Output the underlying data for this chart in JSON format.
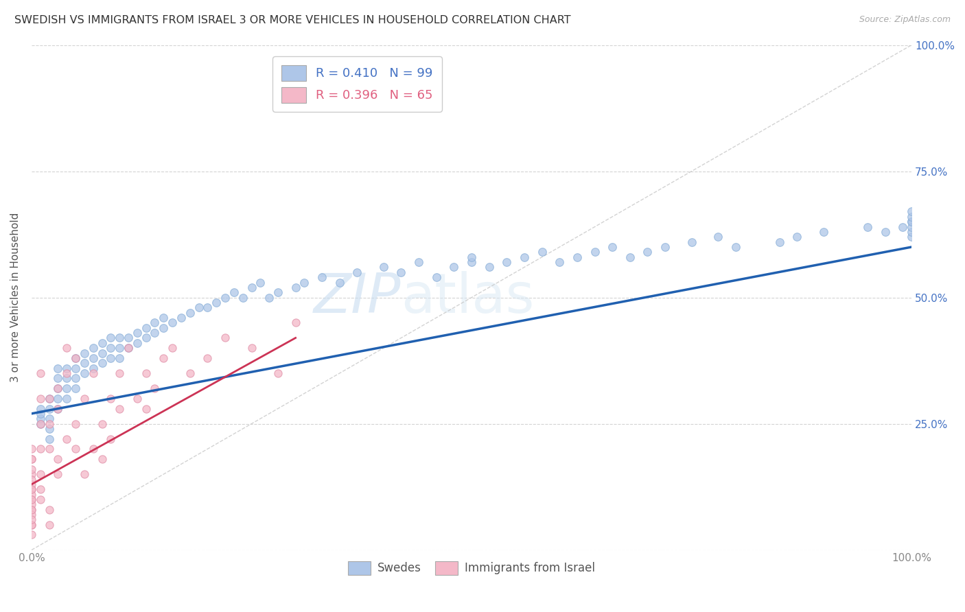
{
  "title": "SWEDISH VS IMMIGRANTS FROM ISRAEL 3 OR MORE VEHICLES IN HOUSEHOLD CORRELATION CHART",
  "source": "Source: ZipAtlas.com",
  "ylabel": "3 or more Vehicles in Household",
  "legend_entries": [
    {
      "label_r": "R = 0.410",
      "label_n": "N = 99",
      "color": "#aec6e8"
    },
    {
      "label_r": "R = 0.396",
      "label_n": "N = 65",
      "color": "#f4b8c8"
    }
  ],
  "legend_labels_bottom": [
    "Swedes",
    "Immigrants from Israel"
  ],
  "swedes_color": "#aec6e8",
  "israel_color": "#f4b8c8",
  "trend_swedes_color": "#2060b0",
  "trend_israel_color": "#cc3355",
  "diagonal_color": "#c8c8c8",
  "watermark_zip": "ZIP",
  "watermark_atlas": "atlas",
  "xlim": [
    0,
    100
  ],
  "ylim": [
    0,
    100
  ],
  "background_color": "#ffffff",
  "grid_color": "#c8c8c8",
  "swedes_x": [
    1,
    1,
    1,
    1,
    2,
    2,
    2,
    2,
    2,
    3,
    3,
    3,
    3,
    3,
    4,
    4,
    4,
    4,
    5,
    5,
    5,
    5,
    6,
    6,
    6,
    7,
    7,
    7,
    8,
    8,
    8,
    9,
    9,
    9,
    10,
    10,
    10,
    11,
    11,
    12,
    12,
    13,
    13,
    14,
    14,
    15,
    15,
    16,
    17,
    18,
    19,
    20,
    21,
    22,
    23,
    24,
    25,
    26,
    27,
    28,
    30,
    31,
    33,
    35,
    37,
    40,
    42,
    44,
    46,
    48,
    50,
    50,
    52,
    54,
    56,
    58,
    60,
    62,
    64,
    66,
    68,
    70,
    72,
    75,
    78,
    80,
    85,
    87,
    90,
    95,
    97,
    99,
    100,
    100,
    100,
    100,
    100,
    100,
    100
  ],
  "swedes_y": [
    25,
    26,
    27,
    28,
    22,
    24,
    26,
    28,
    30,
    28,
    30,
    32,
    34,
    36,
    30,
    32,
    34,
    36,
    32,
    34,
    36,
    38,
    35,
    37,
    39,
    36,
    38,
    40,
    37,
    39,
    41,
    38,
    40,
    42,
    38,
    40,
    42,
    40,
    42,
    41,
    43,
    42,
    44,
    43,
    45,
    44,
    46,
    45,
    46,
    47,
    48,
    48,
    49,
    50,
    51,
    50,
    52,
    53,
    50,
    51,
    52,
    53,
    54,
    53,
    55,
    56,
    55,
    57,
    54,
    56,
    57,
    58,
    56,
    57,
    58,
    59,
    57,
    58,
    59,
    60,
    58,
    59,
    60,
    61,
    62,
    60,
    61,
    62,
    63,
    64,
    63,
    64,
    65,
    62,
    63,
    64,
    65,
    66,
    67
  ],
  "israel_x": [
    0,
    0,
    0,
    0,
    0,
    0,
    0,
    0,
    0,
    0,
    0,
    0,
    0,
    0,
    0,
    0,
    0,
    0,
    0,
    0,
    1,
    1,
    1,
    1,
    1,
    1,
    1,
    2,
    2,
    2,
    2,
    2,
    3,
    3,
    3,
    3,
    4,
    4,
    4,
    5,
    5,
    5,
    6,
    6,
    7,
    7,
    8,
    8,
    9,
    9,
    10,
    10,
    11,
    12,
    13,
    13,
    14,
    15,
    16,
    18,
    20,
    22,
    25,
    28,
    30
  ],
  "israel_y": [
    5,
    8,
    10,
    12,
    15,
    18,
    20,
    5,
    7,
    9,
    11,
    13,
    3,
    6,
    8,
    10,
    12,
    14,
    16,
    18,
    15,
    20,
    25,
    30,
    35,
    10,
    12,
    20,
    25,
    30,
    5,
    8,
    28,
    32,
    15,
    18,
    22,
    35,
    40,
    38,
    25,
    20,
    30,
    15,
    35,
    20,
    25,
    18,
    30,
    22,
    28,
    35,
    40,
    30,
    35,
    28,
    32,
    38,
    40,
    35,
    38,
    42,
    40,
    35,
    45
  ],
  "trend_swedes_x0": 0,
  "trend_swedes_y0": 27,
  "trend_swedes_x1": 100,
  "trend_swedes_y1": 60,
  "trend_israel_x0": 0,
  "trend_israel_y0": 13,
  "trend_israel_x1": 30,
  "trend_israel_y1": 42
}
